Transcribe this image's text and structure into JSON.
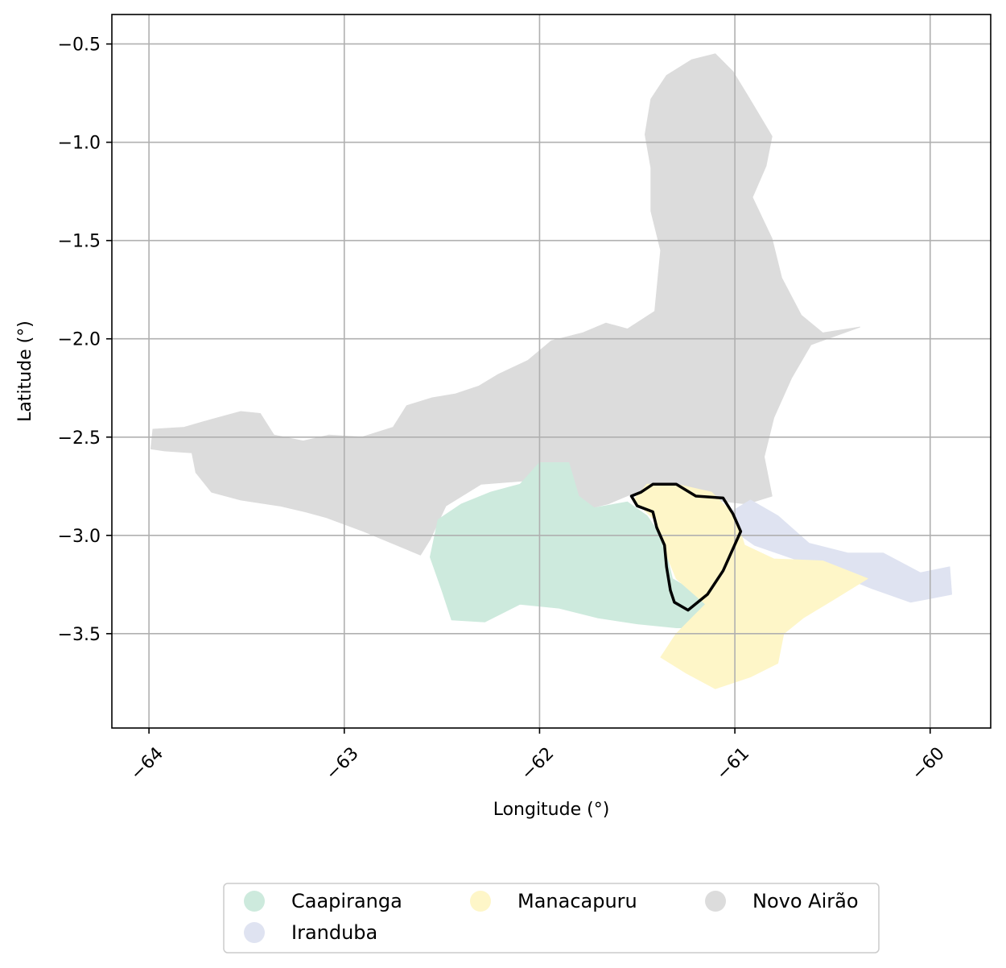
{
  "chart_data": {
    "type": "map",
    "xlabel": "Longitude (°)",
    "ylabel": "Latitude (°)",
    "xlim": [
      -64.19,
      -59.69
    ],
    "ylim": [
      -3.98,
      -0.35
    ],
    "x_ticks": [
      -64,
      -63,
      -62,
      -61,
      -60
    ],
    "x_tick_labels": [
      "−64",
      "−63",
      "−62",
      "−61",
      "−60"
    ],
    "y_ticks": [
      -0.5,
      -1.0,
      -1.5,
      -2.0,
      -2.5,
      -3.0,
      -3.5
    ],
    "y_tick_labels": [
      "−0.5",
      "−1.0",
      "−1.5",
      "−2.0",
      "−2.5",
      "−3.0",
      "−3.5"
    ],
    "grid": true,
    "legend_position": "bottom-center",
    "regions": [
      {
        "name": "Novo Airão",
        "color": "#dcdcdc",
        "polygon": [
          [
            -63.99,
            -2.56
          ],
          [
            -63.98,
            -2.46
          ],
          [
            -63.82,
            -2.45
          ],
          [
            -63.68,
            -2.41
          ],
          [
            -63.53,
            -2.37
          ],
          [
            -63.43,
            -2.38
          ],
          [
            -63.36,
            -2.49
          ],
          [
            -63.21,
            -2.52
          ],
          [
            -63.08,
            -2.49
          ],
          [
            -62.91,
            -2.5
          ],
          [
            -62.75,
            -2.45
          ],
          [
            -62.68,
            -2.34
          ],
          [
            -62.55,
            -2.3
          ],
          [
            -62.43,
            -2.28
          ],
          [
            -62.31,
            -2.24
          ],
          [
            -62.21,
            -2.18
          ],
          [
            -62.06,
            -2.11
          ],
          [
            -61.94,
            -2.01
          ],
          [
            -61.78,
            -1.97
          ],
          [
            -61.66,
            -1.92
          ],
          [
            -61.55,
            -1.95
          ],
          [
            -61.41,
            -1.86
          ],
          [
            -61.38,
            -1.55
          ],
          [
            -61.43,
            -1.35
          ],
          [
            -61.43,
            -1.13
          ],
          [
            -61.46,
            -0.96
          ],
          [
            -61.43,
            -0.78
          ],
          [
            -61.35,
            -0.66
          ],
          [
            -61.22,
            -0.58
          ],
          [
            -61.1,
            -0.55
          ],
          [
            -61.01,
            -0.64
          ],
          [
            -60.93,
            -0.77
          ],
          [
            -60.81,
            -0.97
          ],
          [
            -60.84,
            -1.12
          ],
          [
            -60.91,
            -1.28
          ],
          [
            -60.81,
            -1.49
          ],
          [
            -60.76,
            -1.69
          ],
          [
            -60.66,
            -1.88
          ],
          [
            -60.55,
            -1.97
          ],
          [
            -60.36,
            -1.94
          ],
          [
            -60.61,
            -2.03
          ],
          [
            -60.71,
            -2.2
          ],
          [
            -60.8,
            -2.4
          ],
          [
            -60.85,
            -2.6
          ],
          [
            -60.81,
            -2.8
          ],
          [
            -60.94,
            -2.84
          ],
          [
            -61.12,
            -2.82
          ],
          [
            -61.31,
            -2.75
          ],
          [
            -61.53,
            -2.79
          ],
          [
            -61.65,
            -2.84
          ],
          [
            -61.82,
            -2.88
          ],
          [
            -62.05,
            -2.72
          ],
          [
            -62.3,
            -2.74
          ],
          [
            -62.48,
            -2.85
          ],
          [
            -62.56,
            -3.02
          ],
          [
            -62.61,
            -3.1
          ],
          [
            -62.9,
            -2.98
          ],
          [
            -63.09,
            -2.91
          ],
          [
            -63.2,
            -2.88
          ],
          [
            -63.33,
            -2.85
          ],
          [
            -63.53,
            -2.82
          ],
          [
            -63.68,
            -2.78
          ],
          [
            -63.76,
            -2.68
          ],
          [
            -63.78,
            -2.58
          ],
          [
            -63.92,
            -2.57
          ]
        ]
      },
      {
        "name": "Caapiranga",
        "color": "#cdeadd",
        "polygon": [
          [
            -62.56,
            -3.11
          ],
          [
            -62.52,
            -2.92
          ],
          [
            -62.4,
            -2.84
          ],
          [
            -62.25,
            -2.78
          ],
          [
            -62.1,
            -2.74
          ],
          [
            -62.0,
            -2.63
          ],
          [
            -61.85,
            -2.63
          ],
          [
            -61.8,
            -2.8
          ],
          [
            -61.72,
            -2.86
          ],
          [
            -61.55,
            -2.83
          ],
          [
            -61.45,
            -2.9
          ],
          [
            -61.38,
            -3.0
          ],
          [
            -61.35,
            -3.1
          ],
          [
            -61.32,
            -3.22
          ],
          [
            -61.22,
            -3.28
          ],
          [
            -61.08,
            -3.35
          ],
          [
            -61.08,
            -3.44
          ],
          [
            -61.15,
            -3.47
          ],
          [
            -61.3,
            -3.47
          ],
          [
            -61.5,
            -3.45
          ],
          [
            -61.7,
            -3.42
          ],
          [
            -61.9,
            -3.37
          ],
          [
            -62.1,
            -3.35
          ],
          [
            -62.28,
            -3.44
          ],
          [
            -62.45,
            -3.43
          ],
          [
            -62.5,
            -3.28
          ]
        ]
      },
      {
        "name": "Iranduba",
        "color": "#dfe3f1",
        "polygon": [
          [
            -61.02,
            -2.88
          ],
          [
            -60.92,
            -2.82
          ],
          [
            -60.78,
            -2.9
          ],
          [
            -60.62,
            -3.04
          ],
          [
            -60.42,
            -3.09
          ],
          [
            -60.24,
            -3.09
          ],
          [
            -60.05,
            -3.19
          ],
          [
            -59.9,
            -3.16
          ],
          [
            -59.89,
            -3.3
          ],
          [
            -60.1,
            -3.34
          ],
          [
            -60.3,
            -3.27
          ],
          [
            -60.55,
            -3.17
          ],
          [
            -60.9,
            -3.05
          ],
          [
            -61.0,
            -2.98
          ]
        ]
      },
      {
        "name": "Manacapuru",
        "color": "#fef6c8",
        "polygon": [
          [
            -61.52,
            -2.82
          ],
          [
            -61.45,
            -2.74
          ],
          [
            -61.3,
            -2.74
          ],
          [
            -61.12,
            -2.78
          ],
          [
            -61.0,
            -2.9
          ],
          [
            -60.95,
            -3.05
          ],
          [
            -60.8,
            -3.12
          ],
          [
            -60.55,
            -3.13
          ],
          [
            -60.32,
            -3.22
          ],
          [
            -60.5,
            -3.33
          ],
          [
            -60.65,
            -3.42
          ],
          [
            -60.75,
            -3.5
          ],
          [
            -60.78,
            -3.65
          ],
          [
            -60.92,
            -3.72
          ],
          [
            -61.1,
            -3.78
          ],
          [
            -61.25,
            -3.7
          ],
          [
            -61.38,
            -3.62
          ],
          [
            -61.3,
            -3.5
          ],
          [
            -61.15,
            -3.35
          ],
          [
            -61.3,
            -3.22
          ],
          [
            -61.35,
            -3.1
          ],
          [
            -61.4,
            -2.93
          ]
        ]
      }
    ],
    "highlight_outline": {
      "name": "Manacapuru",
      "stroke_color": "#000000",
      "polygon": [
        [
          -61.53,
          -2.8
        ],
        [
          -61.5,
          -2.85
        ],
        [
          -61.42,
          -2.88
        ],
        [
          -61.4,
          -2.96
        ],
        [
          -61.36,
          -3.05
        ],
        [
          -61.35,
          -3.16
        ],
        [
          -61.33,
          -3.28
        ],
        [
          -61.31,
          -3.34
        ],
        [
          -61.24,
          -3.38
        ],
        [
          -61.14,
          -3.3
        ],
        [
          -61.06,
          -3.18
        ],
        [
          -60.97,
          -2.98
        ],
        [
          -61.01,
          -2.89
        ],
        [
          -61.06,
          -2.81
        ],
        [
          -61.2,
          -2.8
        ],
        [
          -61.3,
          -2.74
        ],
        [
          -61.42,
          -2.74
        ],
        [
          -61.48,
          -2.78
        ]
      ]
    },
    "legend": [
      {
        "label": "Caapiranga",
        "color": "#cdeadd"
      },
      {
        "label": "Iranduba",
        "color": "#dfe3f1"
      },
      {
        "label": "Manacapuru",
        "color": "#fef6c8"
      },
      {
        "label": "Novo Airão",
        "color": "#dcdcdc"
      }
    ]
  }
}
